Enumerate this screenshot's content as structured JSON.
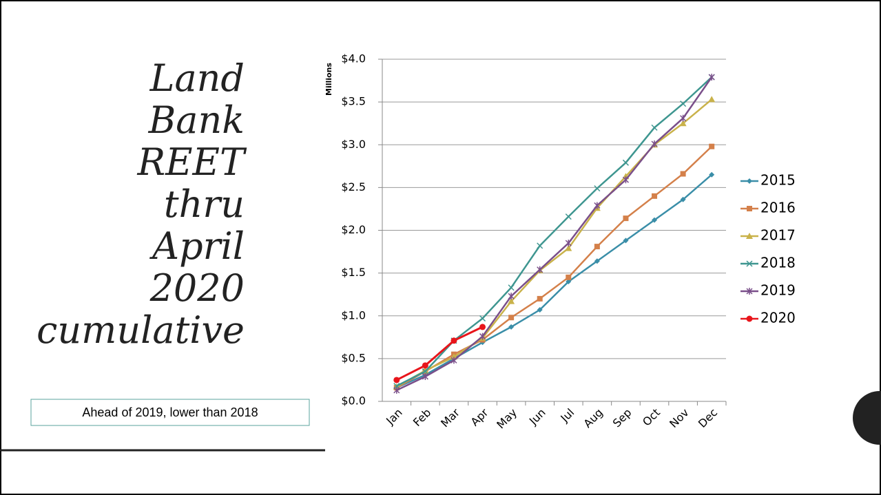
{
  "slide": {
    "title_lines": [
      "Land",
      "Bank",
      "REET",
      "thru",
      "April",
      "2020",
      "cumulative"
    ],
    "note": "Ahead of 2019, lower than 2018"
  },
  "chart_data": {
    "type": "line",
    "y_label": "Millions",
    "categories": [
      "Jan",
      "Feb",
      "Mar",
      "Apr",
      "May",
      "Jun",
      "Jul",
      "Aug",
      "Sep",
      "Oct",
      "Nov",
      "Dec"
    ],
    "series": [
      {
        "name": "2015",
        "color": "#3a8ea8",
        "marker": "diamond",
        "values": [
          0.16,
          0.31,
          0.5,
          0.69,
          0.87,
          1.07,
          1.4,
          1.64,
          1.88,
          2.12,
          2.36,
          2.65
        ]
      },
      {
        "name": "2016",
        "color": "#d4804a",
        "marker": "square",
        "values": [
          0.16,
          0.35,
          0.55,
          0.72,
          0.98,
          1.2,
          1.45,
          1.81,
          2.14,
          2.4,
          2.66,
          2.98
        ]
      },
      {
        "name": "2017",
        "color": "#c9b24a",
        "marker": "triangle",
        "values": [
          0.17,
          0.36,
          0.52,
          0.74,
          1.17,
          1.53,
          1.79,
          2.26,
          2.63,
          3.0,
          3.25,
          3.53
        ]
      },
      {
        "name": "2018",
        "color": "#3e9690",
        "marker": "x",
        "values": [
          0.18,
          0.35,
          0.71,
          0.97,
          1.33,
          1.82,
          2.16,
          2.49,
          2.79,
          3.2,
          3.48,
          3.79
        ]
      },
      {
        "name": "2019",
        "color": "#7a4f8a",
        "marker": "star",
        "values": [
          0.13,
          0.29,
          0.48,
          0.76,
          1.23,
          1.54,
          1.85,
          2.29,
          2.59,
          3.01,
          3.31,
          3.79
        ]
      },
      {
        "name": "2020",
        "color": "#e8151b",
        "marker": "circle",
        "values": [
          0.25,
          0.42,
          0.71,
          0.87,
          null,
          null,
          null,
          null,
          null,
          null,
          null,
          null
        ]
      }
    ],
    "ylim": [
      0,
      4
    ],
    "yticks": [
      {
        "value": 0,
        "label": "$0.0"
      },
      {
        "value": 0.5,
        "label": "$0.5"
      },
      {
        "value": 1,
        "label": "$1.0"
      },
      {
        "value": 1.5,
        "label": "$1.5"
      },
      {
        "value": 2,
        "label": "$2.0"
      },
      {
        "value": 2.5,
        "label": "$2.5"
      },
      {
        "value": 3,
        "label": "$3.0"
      },
      {
        "value": 3.5,
        "label": "$3.5"
      },
      {
        "value": 4,
        "label": "$4.0"
      }
    ],
    "grid": true,
    "legend": "right"
  }
}
